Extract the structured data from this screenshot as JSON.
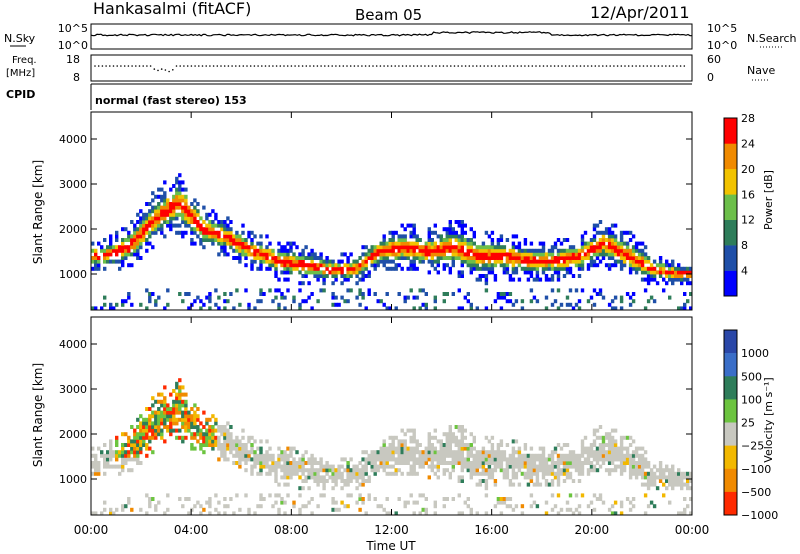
{
  "header": {
    "station": "Hankasalmi (fitACF)",
    "beam": "Beam 05",
    "date": "12/Apr/2011"
  },
  "noise_panel": {
    "left_label": "N.Sky",
    "left_ticks": [
      "10^5",
      "10^0"
    ],
    "right_ticks": [
      "10^5",
      "10^0"
    ],
    "right_label": "N.Search"
  },
  "freq_panel": {
    "left_label_1": "Freq.",
    "left_label_2": "[MHz]",
    "left_ticks": [
      "18",
      "8"
    ],
    "right_ticks": [
      "60",
      "0"
    ],
    "right_label": "Nave"
  },
  "cpid_panel": {
    "label": "CPID",
    "text": "normal (fast stereo) 153"
  },
  "chart_data": [
    {
      "type": "heatmap",
      "name": "power",
      "ylabel": "Slant Range [km]",
      "yticks": [
        "1000",
        "2000",
        "3000",
        "4000"
      ],
      "ylim": [
        200,
        4600
      ],
      "xlim": [
        0,
        24
      ],
      "colorbar_label": "Power [dB]",
      "colorbar_ticks": [
        "4",
        "8",
        "12",
        "16",
        "20",
        "24",
        "28"
      ],
      "colors": [
        "#0000ff",
        "#1f4fa8",
        "#2e7d5a",
        "#6cbf4a",
        "#f2c300",
        "#f08a00",
        "#ff0000"
      ],
      "echo_band": [
        {
          "t": 0.5,
          "center": 1400,
          "width": 400
        },
        {
          "t": 1.5,
          "center": 1600,
          "width": 600
        },
        {
          "t": 2.5,
          "center": 2200,
          "width": 700
        },
        {
          "t": 3.5,
          "center": 2600,
          "width": 800
        },
        {
          "t": 4.5,
          "center": 2000,
          "width": 600
        },
        {
          "t": 5.5,
          "center": 1800,
          "width": 500
        },
        {
          "t": 6.5,
          "center": 1500,
          "width": 500
        },
        {
          "t": 7.5,
          "center": 1300,
          "width": 500
        },
        {
          "t": 8.5,
          "center": 1200,
          "width": 500
        },
        {
          "t": 9.5,
          "center": 1100,
          "width": 400
        },
        {
          "t": 10.5,
          "center": 1100,
          "width": 400
        },
        {
          "t": 11.5,
          "center": 1500,
          "width": 500
        },
        {
          "t": 12.5,
          "center": 1600,
          "width": 600
        },
        {
          "t": 13.5,
          "center": 1500,
          "width": 600
        },
        {
          "t": 14.5,
          "center": 1600,
          "width": 700
        },
        {
          "t": 15.5,
          "center": 1400,
          "width": 700
        },
        {
          "t": 16.5,
          "center": 1400,
          "width": 600
        },
        {
          "t": 17.5,
          "center": 1300,
          "width": 500
        },
        {
          "t": 18.5,
          "center": 1300,
          "width": 500
        },
        {
          "t": 19.5,
          "center": 1400,
          "width": 500
        },
        {
          "t": 20.5,
          "center": 1700,
          "width": 600
        },
        {
          "t": 21.5,
          "center": 1400,
          "width": 600
        },
        {
          "t": 22.5,
          "center": 1100,
          "width": 400
        },
        {
          "t": 23.5,
          "center": 1000,
          "width": 300
        }
      ]
    },
    {
      "type": "heatmap",
      "name": "velocity",
      "ylabel": "Slant Range [km]",
      "yticks": [
        "1000",
        "2000",
        "3000",
        "4000"
      ],
      "ylim": [
        200,
        4600
      ],
      "xlim": [
        0,
        24
      ],
      "colorbar_label": "Velocity [m s⁻¹]",
      "colorbar_ticks": [
        "1000",
        "500",
        "100",
        "25",
        "−25",
        "−100",
        "−500",
        "−1000"
      ],
      "colors": [
        "#2a47a8",
        "#3a6ec8",
        "#2e7d5a",
        "#6cc43f",
        "#c8c8c0",
        "#f2b800",
        "#f08a00",
        "#ff2a00"
      ]
    }
  ],
  "time_axis": {
    "xlabel": "Time UT",
    "ticks": [
      "00:00",
      "04:00",
      "08:00",
      "12:00",
      "16:00",
      "20:00",
      "00:00"
    ]
  }
}
